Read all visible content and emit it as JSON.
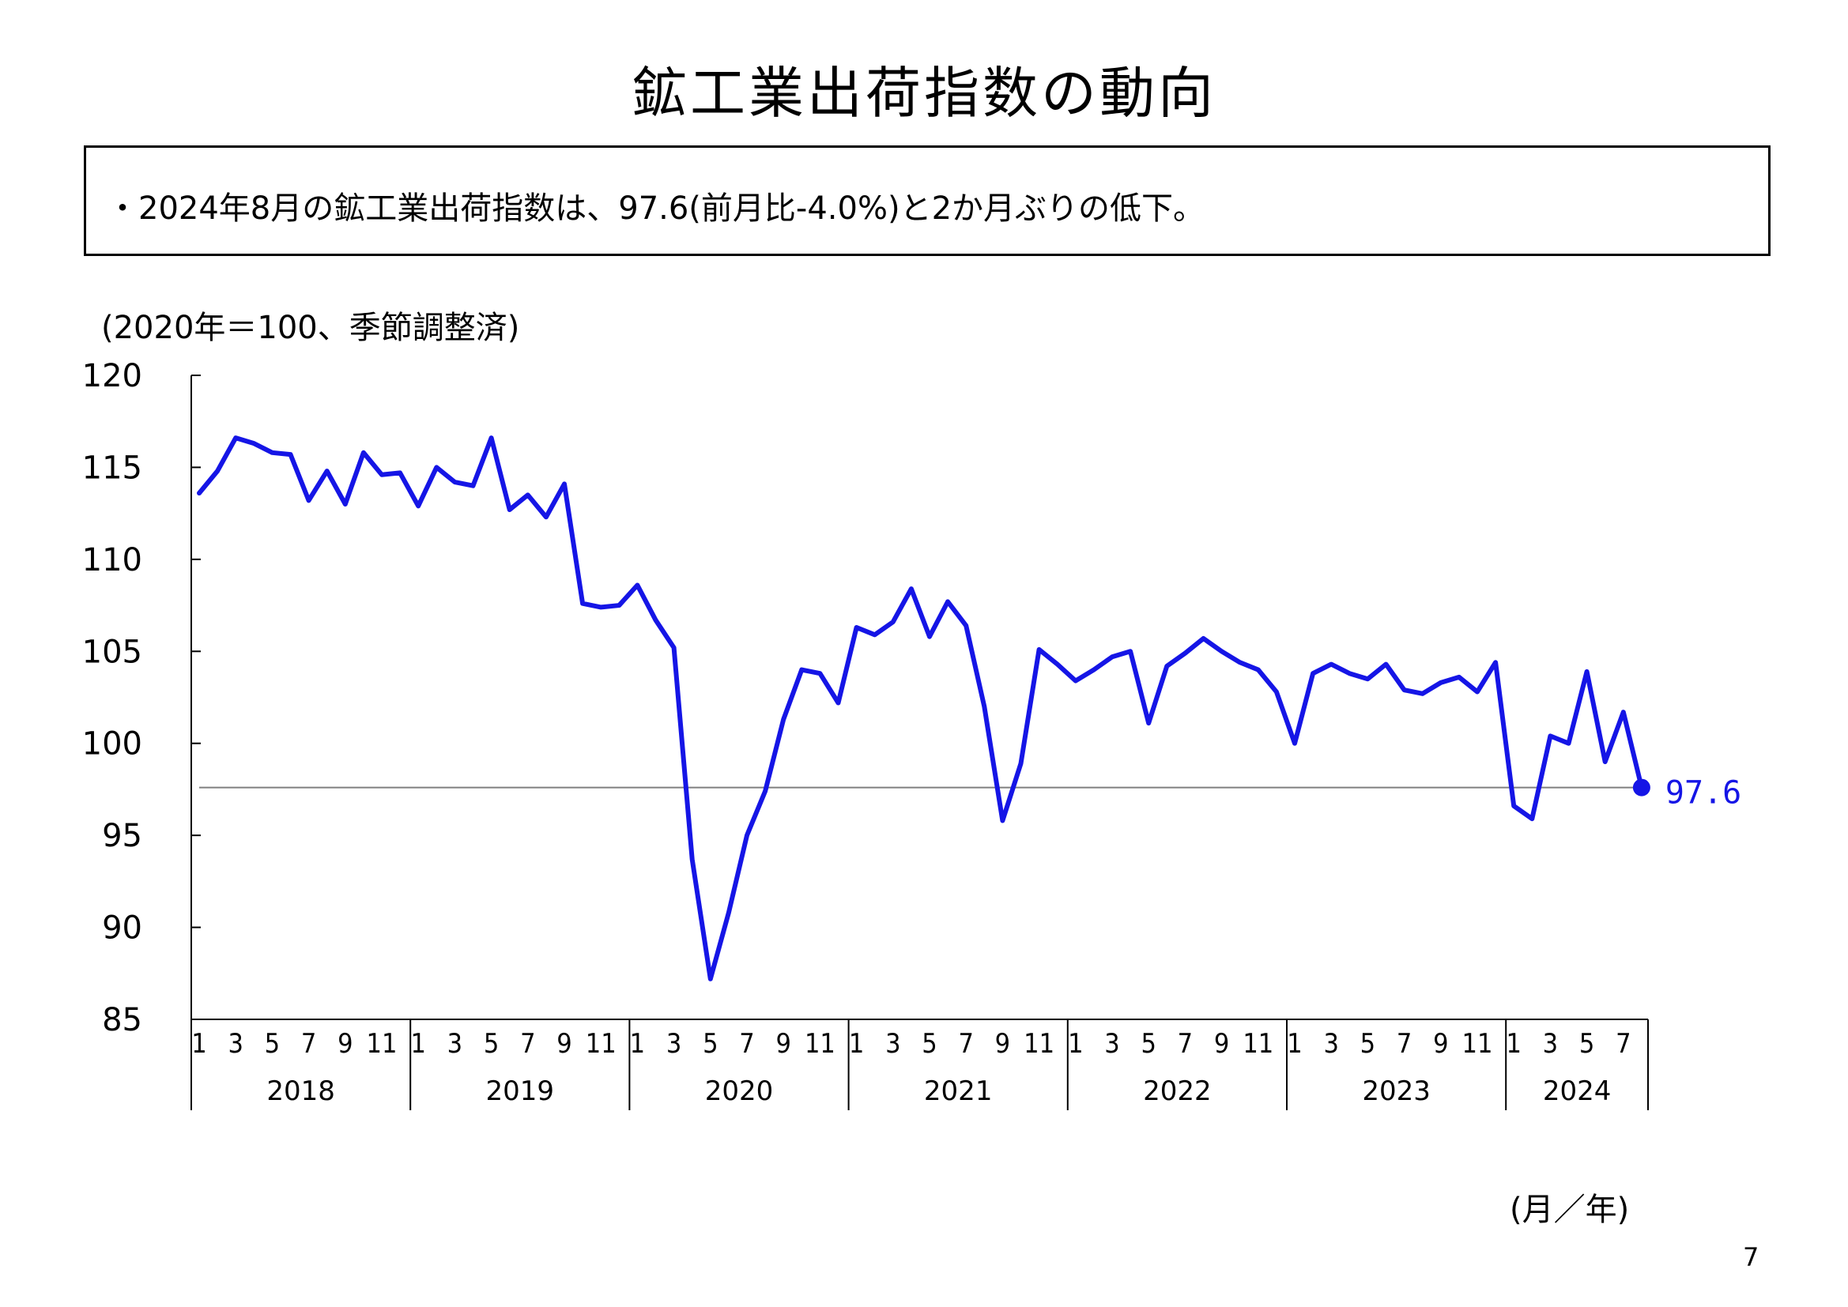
{
  "page": {
    "title": "鉱工業出荷指数の動向",
    "summary": "・2024年8月の鉱工業出荷指数は、97.6(前月比-4.0%)と2か月ぶりの低下。",
    "page_number": "7"
  },
  "chart_data": {
    "type": "line",
    "title": "鉱工業出荷指数の動向",
    "ylabel": "(2020年＝100、季節調整済)",
    "xlabel": "(月／年)",
    "ylim": [
      85,
      120
    ],
    "yticks": [
      85,
      90,
      95,
      100,
      105,
      110,
      115,
      120
    ],
    "years": [
      "2018",
      "2019",
      "2020",
      "2021",
      "2022",
      "2023",
      "2024"
    ],
    "month_ticks": [
      "1",
      "3",
      "5",
      "7",
      "9",
      "11"
    ],
    "reference_line": 97.6,
    "last_label": "97.6",
    "colors": {
      "line": "#1515e6",
      "reference": "#7f7f7f",
      "axis": "#000000"
    },
    "values": [
      113.6,
      114.8,
      116.6,
      116.3,
      115.8,
      115.7,
      113.2,
      114.8,
      113.0,
      115.8,
      114.6,
      114.7,
      112.9,
      115.0,
      114.2,
      114.0,
      116.6,
      112.7,
      113.5,
      112.3,
      114.1,
      107.6,
      107.4,
      107.5,
      108.6,
      106.7,
      105.2,
      93.7,
      87.2,
      90.8,
      95.0,
      97.4,
      101.3,
      104.0,
      103.8,
      102.2,
      106.3,
      105.9,
      106.6,
      108.4,
      105.8,
      107.7,
      106.4,
      102.0,
      95.8,
      98.9,
      105.1,
      104.3,
      103.4,
      104.0,
      104.7,
      105.0,
      101.1,
      104.2,
      104.9,
      105.7,
      105.0,
      104.4,
      104.0,
      102.8,
      100.0,
      103.8,
      104.3,
      103.8,
      103.5,
      104.3,
      102.9,
      102.7,
      103.3,
      103.6,
      102.8,
      104.4,
      96.6,
      95.9,
      100.4,
      100.0,
      103.9,
      99.0,
      101.7,
      97.6
    ]
  }
}
